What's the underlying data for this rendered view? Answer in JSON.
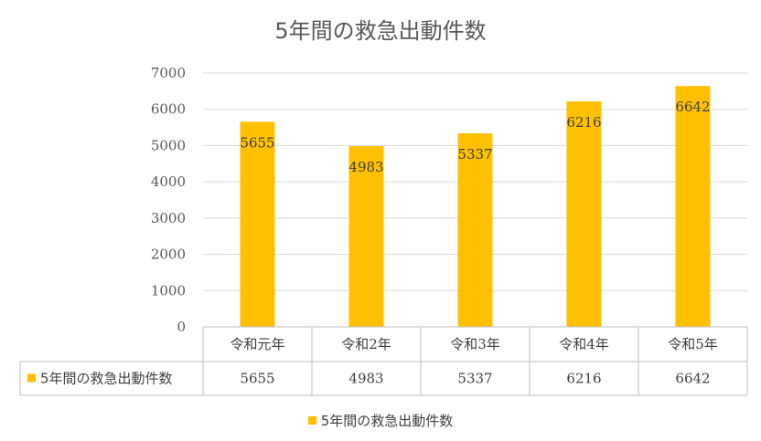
{
  "chart_data": {
    "type": "bar",
    "title": "5年間の救急出動件数",
    "categories": [
      "令和元年",
      "令和2年",
      "令和3年",
      "令和4年",
      "令和5年"
    ],
    "series": [
      {
        "name": "5年間の救急出動件数",
        "values": [
          5655,
          4983,
          5337,
          6216,
          6642
        ],
        "color": "#FFC000"
      }
    ],
    "ylim": [
      0,
      7000
    ],
    "yticks": [
      0,
      1000,
      2000,
      3000,
      4000,
      5000,
      6000,
      7000
    ],
    "grid": true,
    "data_labels": true,
    "data_table": true,
    "legend_position": "bottom"
  }
}
